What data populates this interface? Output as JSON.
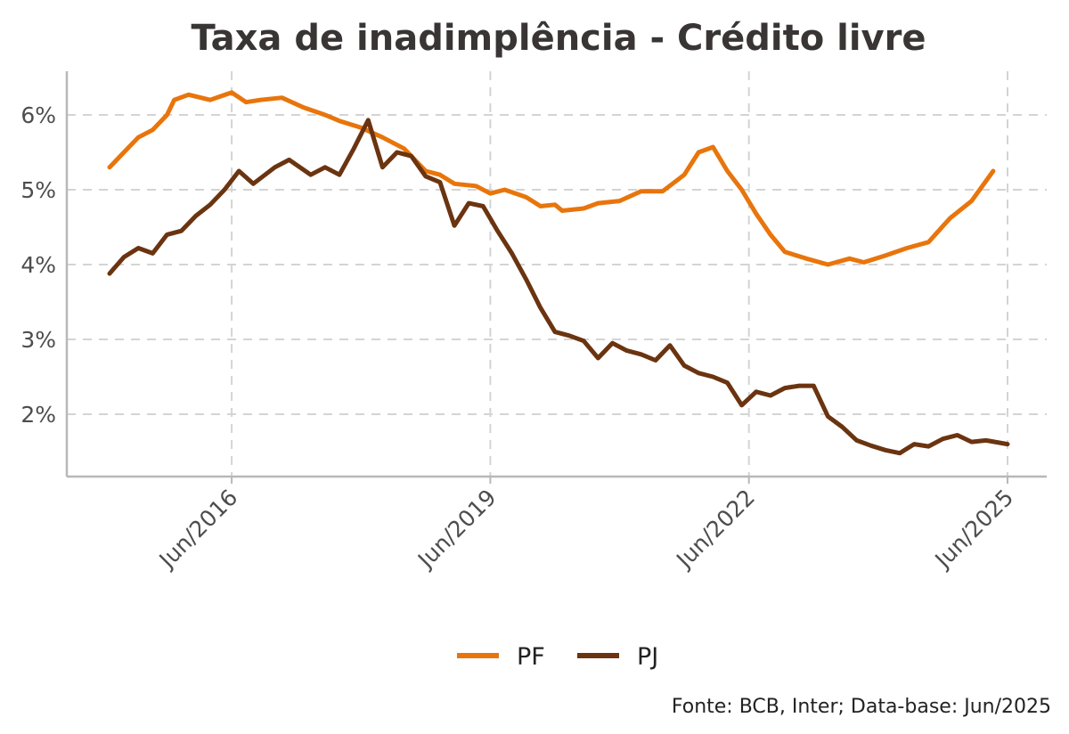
{
  "chart_data": {
    "type": "line",
    "title": "Taxa de inadimplência - Crédito livre",
    "xlabel": "",
    "ylabel": "",
    "caption": "Fonte: BCB, Inter; Data-base: Jun/2025",
    "x_start": "2015-01",
    "x_end": "2025-06",
    "x_ticks": [
      "Jun/2016",
      "Jun/2019",
      "Jun/2022",
      "Jun/2025"
    ],
    "y_ticks": [
      "2%",
      "3%",
      "4%",
      "5%",
      "6%"
    ],
    "ylim": [
      1.2,
      6.6
    ],
    "grid": true,
    "legend_position": "bottom",
    "series": [
      {
        "name": "PF",
        "color": "#E8750C",
        "points": [
          [
            "2015-01",
            5.3
          ],
          [
            "2015-03",
            5.5
          ],
          [
            "2015-05",
            5.7
          ],
          [
            "2015-07",
            5.8
          ],
          [
            "2015-09",
            6.0
          ],
          [
            "2015-10",
            6.2
          ],
          [
            "2015-12",
            6.27
          ],
          [
            "2016-03",
            6.2
          ],
          [
            "2016-06",
            6.3
          ],
          [
            "2016-08",
            6.17
          ],
          [
            "2016-10",
            6.2
          ],
          [
            "2017-01",
            6.23
          ],
          [
            "2017-04",
            6.1
          ],
          [
            "2017-07",
            6.0
          ],
          [
            "2017-09",
            5.92
          ],
          [
            "2017-12",
            5.83
          ],
          [
            "2018-03",
            5.7
          ],
          [
            "2018-06",
            5.55
          ],
          [
            "2018-09",
            5.25
          ],
          [
            "2018-11",
            5.2
          ],
          [
            "2019-01",
            5.08
          ],
          [
            "2019-04",
            5.05
          ],
          [
            "2019-06",
            4.95
          ],
          [
            "2019-08",
            5.0
          ],
          [
            "2019-11",
            4.9
          ],
          [
            "2020-01",
            4.78
          ],
          [
            "2020-03",
            4.8
          ],
          [
            "2020-04",
            4.72
          ],
          [
            "2020-07",
            4.75
          ],
          [
            "2020-09",
            4.82
          ],
          [
            "2020-12",
            4.85
          ],
          [
            "2021-03",
            4.98
          ],
          [
            "2021-06",
            4.98
          ],
          [
            "2021-09",
            5.2
          ],
          [
            "2021-11",
            5.5
          ],
          [
            "2022-01",
            5.57
          ],
          [
            "2022-03",
            5.25
          ],
          [
            "2022-05",
            5.0
          ],
          [
            "2022-07",
            4.68
          ],
          [
            "2022-09",
            4.4
          ],
          [
            "2022-11",
            4.17
          ],
          [
            "2023-02",
            4.08
          ],
          [
            "2023-05",
            4.0
          ],
          [
            "2023-08",
            4.08
          ],
          [
            "2023-10",
            4.03
          ],
          [
            "2024-01",
            4.12
          ],
          [
            "2024-04",
            4.22
          ],
          [
            "2024-07",
            4.3
          ],
          [
            "2024-10",
            4.62
          ],
          [
            "2025-01",
            4.85
          ],
          [
            "2025-04",
            5.25
          ]
        ]
      },
      {
        "name": "PJ",
        "color": "#6B3410",
        "points": [
          [
            "2015-01",
            3.88
          ],
          [
            "2015-03",
            4.1
          ],
          [
            "2015-05",
            4.22
          ],
          [
            "2015-07",
            4.15
          ],
          [
            "2015-09",
            4.4
          ],
          [
            "2015-11",
            4.45
          ],
          [
            "2016-01",
            4.65
          ],
          [
            "2016-03",
            4.8
          ],
          [
            "2016-05",
            5.0
          ],
          [
            "2016-07",
            5.25
          ],
          [
            "2016-09",
            5.08
          ],
          [
            "2016-12",
            5.3
          ],
          [
            "2017-02",
            5.4
          ],
          [
            "2017-05",
            5.2
          ],
          [
            "2017-07",
            5.3
          ],
          [
            "2017-09",
            5.2
          ],
          [
            "2017-11",
            5.55
          ],
          [
            "2018-01",
            5.93
          ],
          [
            "2018-03",
            5.3
          ],
          [
            "2018-05",
            5.5
          ],
          [
            "2018-07",
            5.45
          ],
          [
            "2018-09",
            5.18
          ],
          [
            "2018-11",
            5.1
          ],
          [
            "2019-01",
            4.52
          ],
          [
            "2019-03",
            4.82
          ],
          [
            "2019-05",
            4.78
          ],
          [
            "2019-07",
            4.45
          ],
          [
            "2019-09",
            4.15
          ],
          [
            "2019-11",
            3.8
          ],
          [
            "2020-01",
            3.42
          ],
          [
            "2020-03",
            3.1
          ],
          [
            "2020-05",
            3.05
          ],
          [
            "2020-07",
            2.98
          ],
          [
            "2020-09",
            2.75
          ],
          [
            "2020-11",
            2.95
          ],
          [
            "2021-01",
            2.85
          ],
          [
            "2021-03",
            2.8
          ],
          [
            "2021-05",
            2.72
          ],
          [
            "2021-07",
            2.92
          ],
          [
            "2021-09",
            2.65
          ],
          [
            "2021-11",
            2.55
          ],
          [
            "2022-01",
            2.5
          ],
          [
            "2022-03",
            2.42
          ],
          [
            "2022-05",
            2.12
          ],
          [
            "2022-07",
            2.3
          ],
          [
            "2022-09",
            2.25
          ],
          [
            "2022-11",
            2.35
          ],
          [
            "2023-01",
            2.38
          ],
          [
            "2023-03",
            2.38
          ],
          [
            "2023-05",
            1.97
          ],
          [
            "2023-07",
            1.83
          ],
          [
            "2023-09",
            1.65
          ],
          [
            "2023-11",
            1.58
          ],
          [
            "2024-01",
            1.52
          ],
          [
            "2024-03",
            1.48
          ],
          [
            "2024-05",
            1.6
          ],
          [
            "2024-07",
            1.57
          ],
          [
            "2024-09",
            1.67
          ],
          [
            "2024-11",
            1.72
          ],
          [
            "2025-01",
            1.63
          ],
          [
            "2025-03",
            1.65
          ],
          [
            "2025-06",
            1.6
          ]
        ]
      }
    ]
  }
}
